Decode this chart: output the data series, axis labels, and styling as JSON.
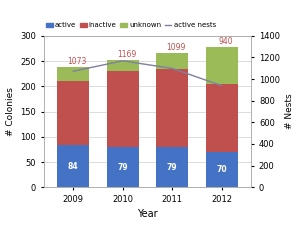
{
  "years": [
    2009,
    2010,
    2011,
    2012
  ],
  "active": [
    84,
    79,
    79,
    70
  ],
  "inactive": [
    127,
    151,
    156,
    135
  ],
  "unknown": [
    28,
    22,
    31,
    72
  ],
  "active_nests": [
    1073,
    1169,
    1099,
    940
  ],
  "bar_colors": {
    "active": "#4472C4",
    "inactive": "#C0504D",
    "unknown": "#9BBB59"
  },
  "line_color": "#7F7F9F",
  "xlabel": "Year",
  "ylabel_left": "# Colonies",
  "ylabel_right": "# Nests",
  "ylim_left": [
    0,
    300
  ],
  "ylim_right": [
    0,
    1400
  ],
  "yticks_left": [
    0,
    50,
    100,
    150,
    200,
    250,
    300
  ],
  "yticks_right": [
    0,
    200,
    400,
    600,
    800,
    1000,
    1200,
    1400
  ],
  "nest_labels": [
    "1073",
    "1169",
    "1099",
    "940"
  ],
  "colony_labels": [
    "84",
    "79",
    "79",
    "70"
  ],
  "bg_color": "#FFFFFF",
  "plot_bg_color": "#FFFFFF",
  "bar_width": 0.65,
  "nest_label_color": "#C0504D",
  "colony_label_color": "#FFFFFF"
}
